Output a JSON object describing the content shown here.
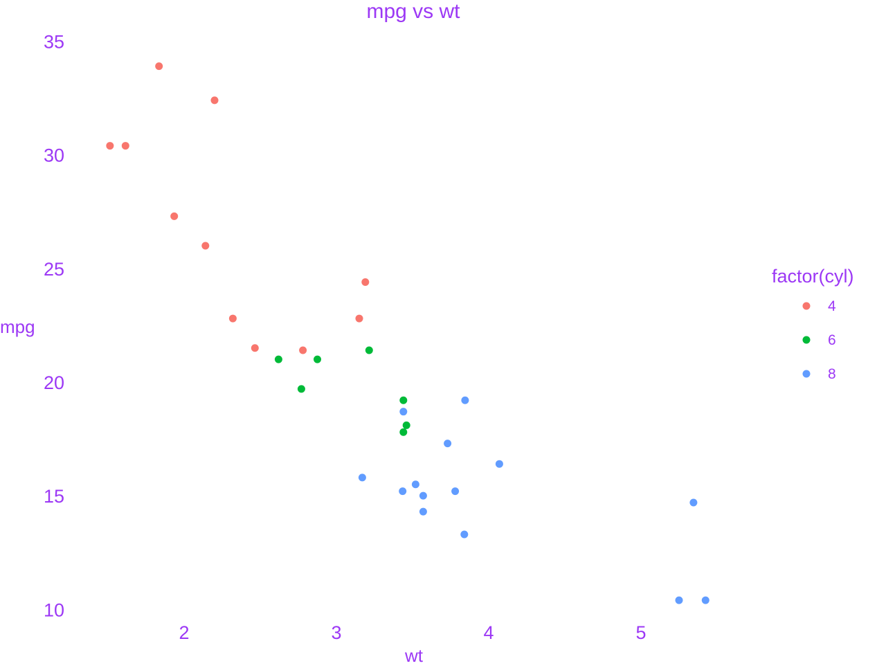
{
  "colors": {
    "text": "#9c38f5",
    "cyl4": "#f8766d",
    "cyl6": "#00ba38",
    "cyl8": "#619cff",
    "background": "#ffffff"
  },
  "chart_data": {
    "type": "scatter",
    "title": "mpg vs wt",
    "xlabel": "wt",
    "ylabel": "mpg",
    "xlim": [
      1.3,
      5.7
    ],
    "ylim": [
      9.4,
      35.9
    ],
    "xticks": [
      2,
      3,
      4,
      5
    ],
    "yticks": [
      10,
      15,
      20,
      25,
      30,
      35
    ],
    "grid": false,
    "legend": {
      "title": "factor(cyl)",
      "placement": "right",
      "entries": [
        "4",
        "6",
        "8"
      ]
    },
    "series": [
      {
        "name": "4",
        "color": "#f8766d",
        "points": [
          [
            2.32,
            22.8
          ],
          [
            3.19,
            24.4
          ],
          [
            3.15,
            22.8
          ],
          [
            2.2,
            32.4
          ],
          [
            1.615,
            30.4
          ],
          [
            1.835,
            33.9
          ],
          [
            2.465,
            21.5
          ],
          [
            1.935,
            27.3
          ],
          [
            2.14,
            26.0
          ],
          [
            1.513,
            30.4
          ],
          [
            2.78,
            21.4
          ]
        ]
      },
      {
        "name": "6",
        "color": "#00ba38",
        "points": [
          [
            2.62,
            21.0
          ],
          [
            2.875,
            21.0
          ],
          [
            3.215,
            21.4
          ],
          [
            3.46,
            18.1
          ],
          [
            3.44,
            19.2
          ],
          [
            3.44,
            17.8
          ],
          [
            2.77,
            19.7
          ]
        ]
      },
      {
        "name": "8",
        "color": "#619cff",
        "points": [
          [
            3.44,
            18.7
          ],
          [
            3.57,
            14.3
          ],
          [
            4.07,
            16.4
          ],
          [
            3.73,
            17.3
          ],
          [
            3.78,
            15.2
          ],
          [
            5.25,
            10.4
          ],
          [
            5.424,
            10.4
          ],
          [
            5.345,
            14.7
          ],
          [
            3.52,
            15.5
          ],
          [
            3.435,
            15.2
          ],
          [
            3.84,
            13.3
          ],
          [
            3.845,
            19.2
          ],
          [
            3.17,
            15.8
          ],
          [
            3.57,
            15.0
          ]
        ]
      }
    ]
  }
}
